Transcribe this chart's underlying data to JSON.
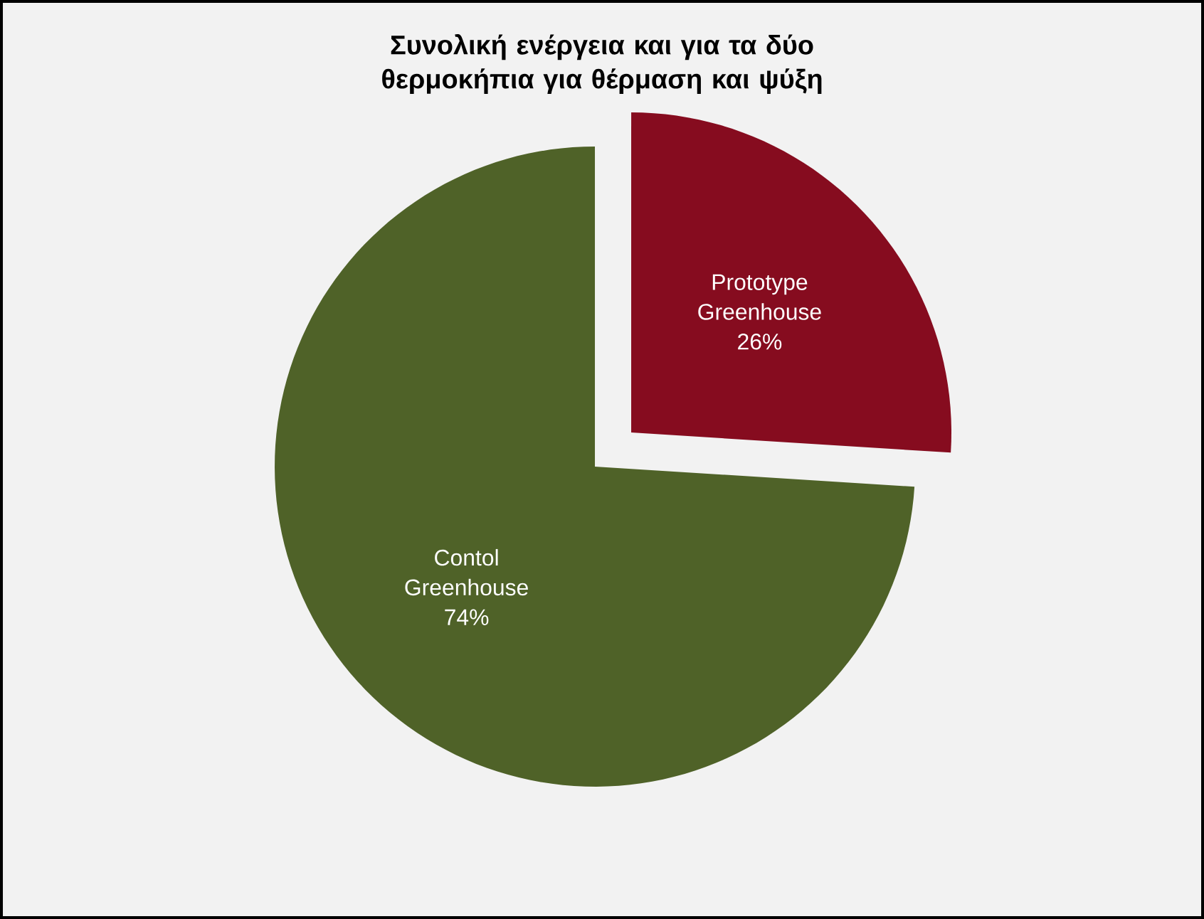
{
  "chart_data": {
    "type": "pie",
    "title": "Συνολική ενέργεια και για τα δύο θερμοκήπια για θέρμαση και ψύξη",
    "categories": [
      "Prototype Greenhouse",
      "Contol Greenhouse"
    ],
    "values": [
      26,
      74
    ],
    "colors": [
      "#860c1f",
      "#4f6228"
    ],
    "value_labels": [
      "26%",
      "74%"
    ]
  }
}
